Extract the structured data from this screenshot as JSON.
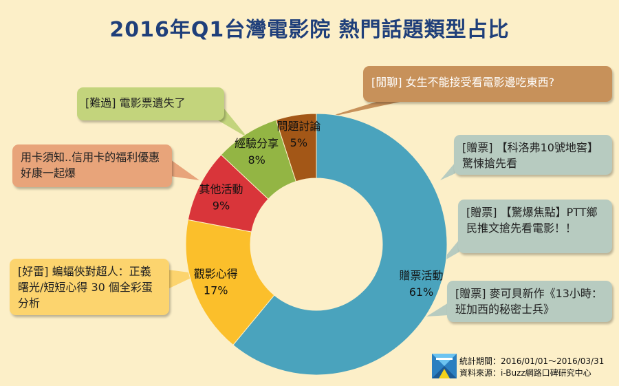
{
  "chart_data": {
    "type": "pie",
    "title": "2016年Q1台灣電影院 熱門話題類型占比",
    "categories": [
      "贈票活動",
      "觀影心得",
      "其他活動",
      "經驗分享",
      "問題討論"
    ],
    "values": [
      61,
      17,
      9,
      8,
      5
    ],
    "value_labels": [
      "61%",
      "17%",
      "9%",
      "8%",
      "5%"
    ],
    "colors": [
      "#4aa3bd",
      "#fbbf2b",
      "#d9353a",
      "#93b544",
      "#a35717"
    ],
    "annotations": [
      {
        "key": "wenti",
        "text": "[閒聊] 女生不能接受看電影邊吃東西?"
      },
      {
        "key": "jingyan",
        "text": "[難過] 電影票遺失了"
      },
      {
        "key": "qita",
        "text": "用卡須知..信用卡的福利優惠 好康一起爆"
      },
      {
        "key": "guanying",
        "text": "[好雷] 蝙蝠俠對超人：正義曙光/短短心得 30 個全彩蛋分析"
      },
      {
        "key": "zengpiao1",
        "text": "[贈票] 【科洛弗10號地窖】驚悚搶先看"
      },
      {
        "key": "zengpiao2",
        "text": "[贈票] 【驚爆焦點】PTT鄉民推文搶先看電影！！"
      },
      {
        "key": "zengpiao3",
        "text": "[贈票] 麥可貝新作《13小時：班加西的秘密士兵》"
      }
    ]
  },
  "footer": {
    "period": "統計期間：2016/01/01～2016/03/31",
    "source": "資料來源：i-Buzz網路口碑研究中心"
  }
}
